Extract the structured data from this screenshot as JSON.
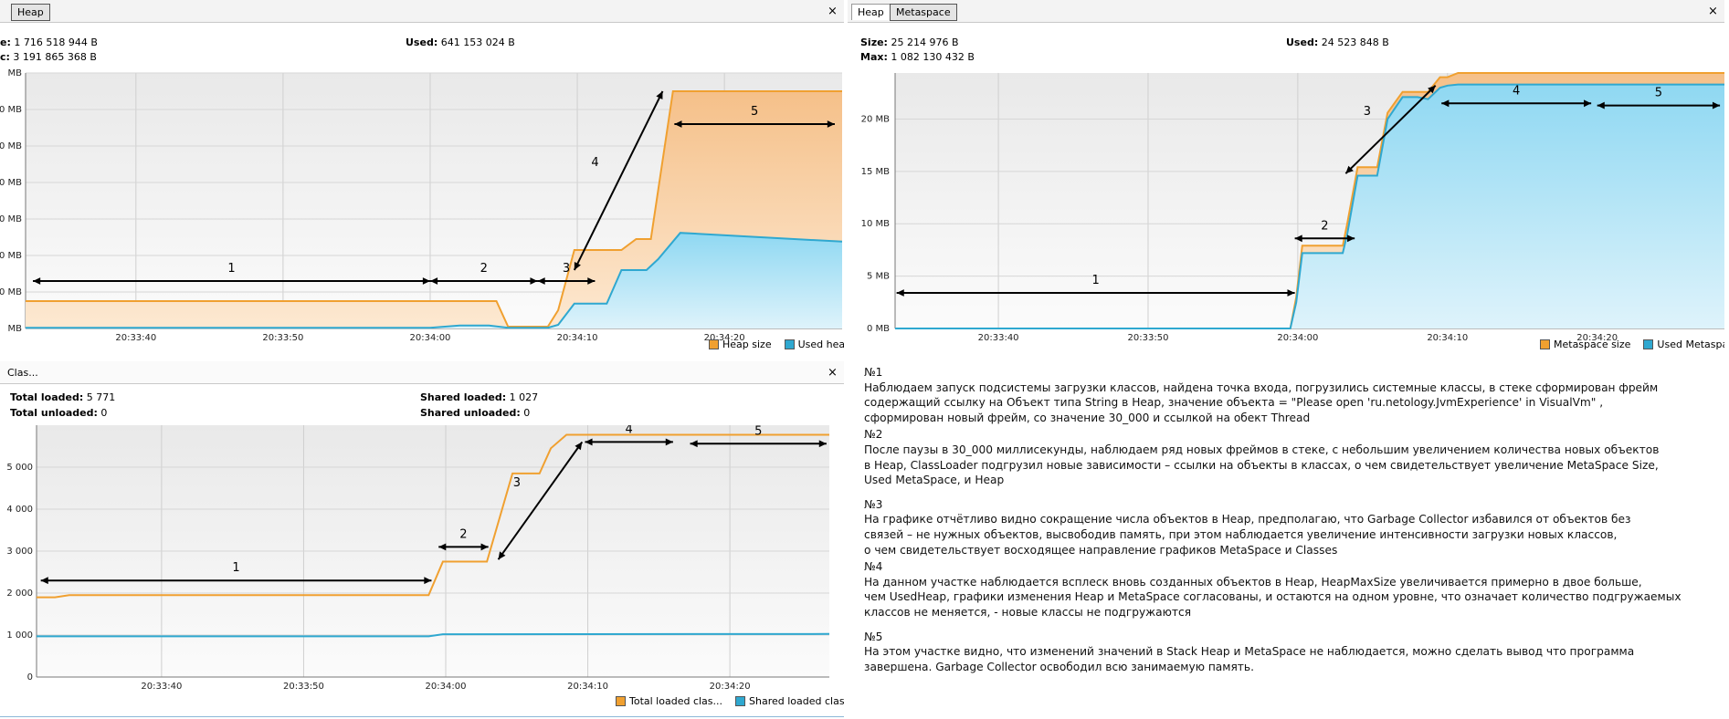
{
  "heap_panel": {
    "tab": "Heap",
    "close": "×",
    "size_label": "e:",
    "size_value": "1 716 518 944 B",
    "max_label": "c:",
    "max_value": "3 191 865 368 B",
    "used_label": "Used:",
    "used_value": "641 153 024 B",
    "legend": [
      "Heap size",
      "Used heap"
    ]
  },
  "meta_panel": {
    "tabs": [
      "Heap",
      "Metaspace"
    ],
    "close": "×",
    "size_label": "Size:",
    "size_value": "25 214 976 B",
    "max_label": "Max:",
    "max_value": "1 082 130 432 B",
    "used_label": "Used:",
    "used_value": "24 523 848 B",
    "legend": [
      "Metaspace size",
      "Used Metaspace"
    ]
  },
  "classes_panel": {
    "tab": "Clas...",
    "close": "×",
    "total_loaded_label": "Total loaded:",
    "total_loaded_value": "5 771",
    "total_unloaded_label": "Total unloaded:",
    "total_unloaded_value": "0",
    "shared_loaded_label": "Shared loaded:",
    "shared_loaded_value": "1 027",
    "shared_unloaded_label": "Shared unloaded:",
    "shared_unloaded_value": "0",
    "legend": [
      "Total loaded clas...",
      "Shared loaded classes"
    ]
  },
  "colors": {
    "size": "#f0a030",
    "size_fill": "#f7cc94",
    "used": "#2fa8d0",
    "used_fill": "#a6e0f4"
  },
  "chart_data": [
    {
      "id": "heap",
      "type": "area",
      "x_ticks": [
        "20:33:40",
        "20:33:50",
        "20:34:00",
        "20:34:10",
        "20:34:20"
      ],
      "x_tick_values": [
        10,
        20,
        30,
        40,
        50
      ],
      "x_range": [
        2.5,
        58
      ],
      "y_ticks": [
        " MB",
        "0 MB",
        "0 MB",
        "0 MB",
        "0 MB",
        "0 MB",
        "0 MB",
        " MB"
      ],
      "y_tick_values": [
        0,
        100,
        200,
        300,
        400,
        500,
        600,
        700
      ],
      "y_range": [
        0,
        700
      ],
      "series": [
        {
          "name": "Heap size",
          "x": [
            2.5,
            30,
            34.5,
            35.3,
            38,
            38.7,
            39.8,
            43,
            44,
            45,
            46.5,
            58
          ],
          "y": [
            75,
            75,
            75,
            5,
            5,
            50,
            215,
            215,
            245,
            245,
            650,
            650
          ]
        },
        {
          "name": "Used heap",
          "x": [
            2.5,
            30,
            32,
            34,
            35.3,
            38,
            38.7,
            39.8,
            42,
            43,
            44.7,
            45.5,
            47,
            58
          ],
          "y": [
            2,
            2,
            8,
            8,
            2,
            2,
            10,
            68,
            68,
            160,
            160,
            190,
            262,
            238
          ]
        }
      ],
      "annotations": [
        {
          "label": "1",
          "x1": 3,
          "x2": 30,
          "y": 130
        },
        {
          "label": "2",
          "x1": 30,
          "x2": 37.3,
          "y": 130
        },
        {
          "label": "3",
          "x1": 37.3,
          "x2": 41.2,
          "y": 130
        },
        {
          "label": "4",
          "x1": 39.8,
          "x2": 45.8,
          "y1": 160,
          "y2": 650
        },
        {
          "label": "5",
          "x1": 46.6,
          "x2": 57.5,
          "y": 560
        }
      ]
    },
    {
      "id": "metaspace",
      "type": "area",
      "x_ticks": [
        "20:33:40",
        "20:33:50",
        "20:34:00",
        "20:34:10",
        "20:34:20"
      ],
      "x_tick_values": [
        10,
        20,
        30,
        40,
        50
      ],
      "x_range": [
        3.1,
        58.5
      ],
      "y_ticks": [
        "0 MB",
        "5 MB",
        "10 MB",
        "15 MB",
        "20 MB"
      ],
      "y_tick_values": [
        0,
        5,
        10,
        15,
        20
      ],
      "y_range": [
        0,
        24.4
      ],
      "series": [
        {
          "name": "Metaspace size",
          "x": [
            3.1,
            29.5,
            29.9,
            30.3,
            33,
            33.3,
            34,
            35,
            35.3,
            36,
            37,
            38,
            38.7,
            39.5,
            40,
            40.7,
            58.5
          ],
          "y": [
            0,
            0,
            3,
            7.9,
            7.9,
            10,
            15.4,
            15.4,
            15.4,
            20.6,
            22.6,
            22.6,
            22.6,
            24,
            24,
            24.4,
            24.4
          ]
        },
        {
          "name": "Used Metaspace",
          "x": [
            3.1,
            29.5,
            29.9,
            30.3,
            33,
            33.3,
            34,
            35,
            35.3,
            36,
            37,
            38,
            38.7,
            39.5,
            40,
            40.7,
            58.5
          ],
          "y": [
            0,
            0,
            2.5,
            7.2,
            7.2,
            9,
            14.6,
            14.6,
            14.6,
            20,
            22.1,
            22.1,
            21.9,
            23,
            23.2,
            23.3,
            23.3
          ]
        }
      ],
      "annotations": [
        {
          "label": "1",
          "x1": 3.2,
          "x2": 29.8,
          "y": 3.4
        },
        {
          "label": "2",
          "x1": 29.8,
          "x2": 33.8,
          "y": 8.6
        },
        {
          "label": "3",
          "x1": 33.2,
          "x2": 39.2,
          "y1": 14.8,
          "y2": 23.2
        },
        {
          "label": "4",
          "x1": 39.6,
          "x2": 49.6,
          "y": 21.5
        },
        {
          "label": "5",
          "x1": 50,
          "x2": 58.2,
          "y": 21.3
        }
      ]
    },
    {
      "id": "classes",
      "type": "line",
      "x_ticks": [
        "20:33:40",
        "20:33:50",
        "20:34:00",
        "20:34:10",
        "20:34:20"
      ],
      "x_tick_values": [
        10,
        20,
        30,
        40,
        50
      ],
      "x_range": [
        1.2,
        57
      ],
      "y_ticks": [
        "0",
        "1 000",
        "2 000",
        "3 000",
        "4 000",
        "5 000"
      ],
      "y_tick_values": [
        0,
        1000,
        2000,
        3000,
        4000,
        5000
      ],
      "y_range": [
        0,
        6000
      ],
      "series": [
        {
          "name": "Total loaded clas...",
          "x": [
            1.2,
            2.5,
            3.5,
            28.8,
            29.8,
            31,
            32.9,
            34.7,
            36.6,
            37.4,
            38.5,
            57
          ],
          "y": [
            1900,
            1900,
            1950,
            1950,
            2750,
            2750,
            2750,
            4850,
            4850,
            5450,
            5771,
            5771
          ]
        },
        {
          "name": "Shared loaded classes",
          "x": [
            1.2,
            28.8,
            29.8,
            57
          ],
          "y": [
            970,
            970,
            1020,
            1027
          ]
        }
      ],
      "annotations": [
        {
          "label": "1",
          "x1": 1.5,
          "x2": 29,
          "y": 2300
        },
        {
          "label": "2",
          "x1": 29.5,
          "x2": 33,
          "y": 3100
        },
        {
          "label": "3",
          "x1": 33.7,
          "x2": 39.6,
          "y1": 2800,
          "y2": 5600
        },
        {
          "label": "4",
          "x1": 39.8,
          "x2": 46,
          "y": 5600
        },
        {
          "label": "5",
          "x1": 47.2,
          "x2": 56.8,
          "y": 5560
        }
      ]
    }
  ],
  "notes": [
    {
      "heading": "№1",
      "text": "Наблюдаем запуск подсистемы загрузки классов, найдена точка входа, погрузились системные классы, в стеке сформирован фрейм\nсодержащий ссылку на Объект типа String в Heap, значение объекта = \"Please open 'ru.netology.JvmExperience' in VisualVm\" ,\n сформирован новый фрейм, со значение 30_000 и ссылкой на обект Thread"
    },
    {
      "heading": "№2",
      "text": "После паузы в 30_000 миллисекунды, наблюдаем ряд новых фреймов в стеке, с небольшим увеличением количества новых объектов\nв Heap, ClassLoader подгрузил новые зависимости – ссылки на объекты в классах, о чем свидетельствует увеличение MetaSpace Size,\nUsed MetaSpace, и Heap"
    },
    {
      "heading": "№3",
      "text": "На графике отчётливо видно сокращение числа объектов в Heap, предполагаю, что Garbage Collector избавился от объектов без\nсвязей – не нужных объектов, высвободив память, при этом наблюдается увеличение интенсивности загрузки новых классов,\nо чем свидетельствует восходящее направление графиков MetaSpace и Classes"
    },
    {
      "heading": "№4",
      "text": "На данном участке наблюдается всплеск вновь созданных объектов в Heap, HeapMaxSize увеличивается примерно в двое больше,\nчем UsedHeap, графики изменения Heap и MetaSpace согласованы, и остаются на одном уровне, что означает количество подгружаемых\nклассов не меняется, - новые классы не подгружаются"
    },
    {
      "heading": "№5",
      "text": "На этом участке видно, что изменений значений в Stack Heap и MetaSpace не наблюдается, можно сделать вывод что программа\nзавершена. Garbage Collector освободил всю занимаемую память."
    }
  ]
}
